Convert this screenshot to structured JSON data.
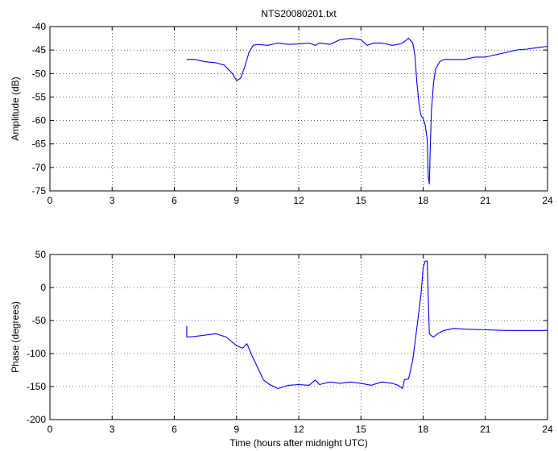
{
  "chart_data": [
    {
      "type": "line",
      "title": "NTS20080201.txt",
      "xlabel": "",
      "ylabel": "Amplitude (dB)",
      "xlim": [
        0,
        24
      ],
      "ylim": [
        -75,
        -40
      ],
      "xticks": [
        "0",
        "3",
        "6",
        "9",
        "12",
        "15",
        "18",
        "21",
        "24"
      ],
      "yticks": [
        "-40",
        "-45",
        "-50",
        "-55",
        "-60",
        "-65",
        "-70",
        "-75"
      ],
      "grid": true,
      "line_color": "#0000ff",
      "series": [
        {
          "x": [
            6.6,
            7.0,
            7.5,
            8.0,
            8.4,
            8.8,
            9.0,
            9.2,
            9.4,
            9.6,
            9.8,
            10.0,
            10.5,
            11.0,
            11.5,
            12.0,
            12.5,
            12.8,
            13.0,
            13.5,
            14.0,
            14.5,
            15.0,
            15.3,
            15.6,
            16.0,
            16.5,
            16.8,
            17.0,
            17.3,
            17.5,
            17.6,
            17.7,
            17.8,
            17.9,
            18.0,
            18.1,
            18.2,
            18.25,
            18.3,
            18.35,
            18.4,
            18.5,
            18.6,
            18.8,
            19.0,
            19.5,
            20.0,
            20.5,
            21.0,
            21.5,
            22.0,
            22.5,
            23.0,
            23.5,
            24.0
          ],
          "y": [
            -47,
            -47,
            -47.5,
            -47.7,
            -48.2,
            -50,
            -51.5,
            -51,
            -48.5,
            -45.5,
            -44,
            -43.8,
            -44,
            -43.5,
            -43.8,
            -43.7,
            -43.5,
            -44,
            -43.5,
            -43.8,
            -42.8,
            -42.5,
            -42.8,
            -44,
            -43.5,
            -43.5,
            -44,
            -43.8,
            -43.5,
            -42.5,
            -43.5,
            -46,
            -52,
            -56.5,
            -59,
            -59.5,
            -61,
            -64,
            -72,
            -73.5,
            -65,
            -58,
            -52,
            -49,
            -47.5,
            -47,
            -47,
            -47,
            -46.5,
            -46.5,
            -46,
            -45.5,
            -45,
            -44.8,
            -44.5,
            -44.2
          ]
        }
      ]
    },
    {
      "type": "line",
      "title": "",
      "xlabel": "Time (hours after midnight UTC)",
      "ylabel": "Phase (degrees)",
      "xlim": [
        0,
        24
      ],
      "ylim": [
        -200,
        50
      ],
      "xticks": [
        "0",
        "3",
        "6",
        "9",
        "12",
        "15",
        "18",
        "21",
        "24"
      ],
      "yticks": [
        "50",
        "0",
        "-50",
        "-100",
        "-150",
        "-200"
      ],
      "grid": true,
      "line_color": "#0000ff",
      "series": [
        {
          "x": [
            6.6,
            6.6,
            6.62,
            7.0,
            7.5,
            8.0,
            8.5,
            9.0,
            9.3,
            9.5,
            9.7,
            10.0,
            10.3,
            10.6,
            10.8,
            11.0,
            11.5,
            12.0,
            12.5,
            12.8,
            13.0,
            13.5,
            14.0,
            14.5,
            15.0,
            15.5,
            16.0,
            16.5,
            16.8,
            17.0,
            17.1,
            17.3,
            17.5,
            17.7,
            17.9,
            18.0,
            18.1,
            18.2,
            18.3,
            18.4,
            18.5,
            18.7,
            19.0,
            19.5,
            20.0,
            21.0,
            22.0,
            23.0,
            24.0
          ],
          "y": [
            -58,
            -75,
            -75,
            -74,
            -72,
            -70,
            -75,
            -88,
            -92,
            -85,
            -100,
            -120,
            -140,
            -147,
            -150,
            -153,
            -148,
            -147,
            -148,
            -140,
            -147,
            -143,
            -145,
            -143,
            -145,
            -148,
            -143,
            -145,
            -148,
            -153,
            -140,
            -138,
            -110,
            -60,
            -10,
            30,
            40,
            40,
            -70,
            -73,
            -75,
            -70,
            -65,
            -62,
            -63,
            -64,
            -65,
            -65,
            -65
          ]
        }
      ]
    }
  ]
}
